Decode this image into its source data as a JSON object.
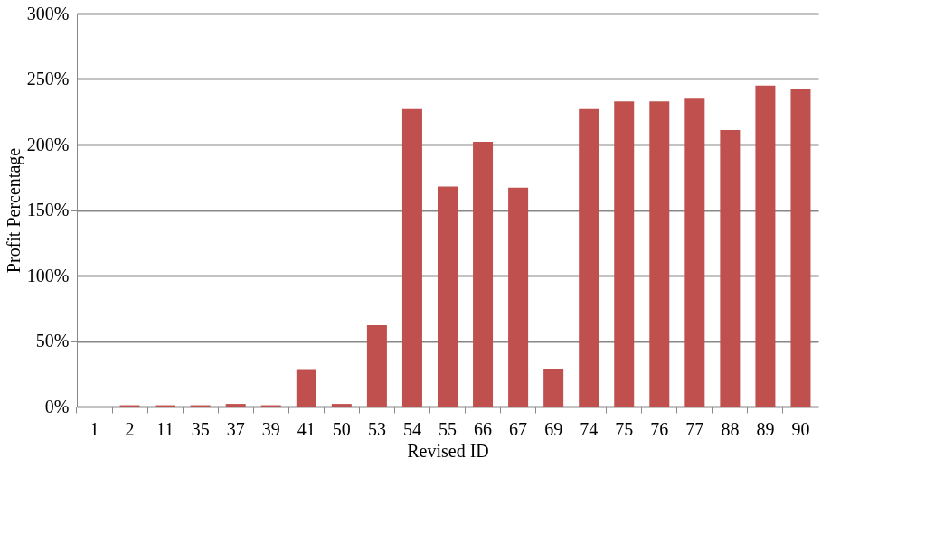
{
  "chart_data": {
    "type": "bar",
    "xlabel": "Revised ID",
    "ylabel": "Profit Percentage",
    "categories": [
      "1",
      "2",
      "11",
      "35",
      "37",
      "39",
      "41",
      "50",
      "53",
      "54",
      "55",
      "66",
      "67",
      "69",
      "74",
      "75",
      "76",
      "77",
      "88",
      "89",
      "90"
    ],
    "series": [
      {
        "color": "#c0504d",
        "values": [
          0,
          1,
          1,
          1,
          2,
          1,
          28,
          2,
          62,
          227,
          168,
          202,
          167,
          29,
          227,
          233,
          233,
          235,
          211,
          245,
          242
        ]
      }
    ],
    "ylim": [
      0,
      300
    ],
    "yticks": [
      {
        "value": 0,
        "label": "0%"
      },
      {
        "value": 50,
        "label": "50%"
      },
      {
        "value": 100,
        "label": "100%"
      },
      {
        "value": 150,
        "label": "150%"
      },
      {
        "value": 200,
        "label": "200%"
      },
      {
        "value": 250,
        "label": "250%"
      },
      {
        "value": 300,
        "label": "300%"
      }
    ],
    "grid": "y",
    "legend": false
  }
}
